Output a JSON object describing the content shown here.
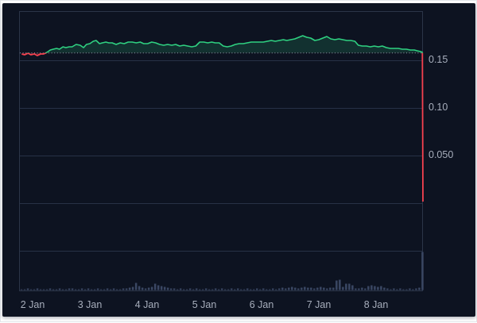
{
  "chart_data": {
    "type": "line",
    "title": "",
    "description": "Dark-themed cryptocurrency price chart: price holds near 0.16 from 2 Jan to 8 Jan, then flash-crashes to near zero; volume bars along bottom with large spike at the crash.",
    "x_axis": {
      "tick_labels": [
        "2 Jan",
        "3 Jan",
        "4 Jan",
        "5 Jan",
        "6 Jan",
        "7 Jan",
        "8 Jan"
      ],
      "unit": "days since 2 Jan 00:00"
    },
    "y_axis": {
      "ticks": [
        {
          "label": "0.15",
          "value": 0.15
        },
        {
          "label": "0.10",
          "value": 0.1
        },
        {
          "label": "0.050",
          "value": 0.05
        }
      ],
      "grid_values": [
        0.15,
        0.1,
        0.05,
        0.0,
        -0.05
      ],
      "ylim": [
        0,
        0.2
      ],
      "grid": "horizontal-only",
      "legend": "none"
    },
    "previous_close": 0.1577,
    "series": [
      {
        "name": "price",
        "points": [
          [
            -0.19,
            0.1567
          ],
          [
            -0.14,
            0.1558
          ],
          [
            -0.08,
            0.1575
          ],
          [
            -0.03,
            0.1558
          ],
          [
            0.03,
            0.1567
          ],
          [
            0.08,
            0.155
          ],
          [
            0.14,
            0.1567
          ],
          [
            0.19,
            0.1567
          ],
          [
            0.25,
            0.1583
          ],
          [
            0.31,
            0.1608
          ],
          [
            0.36,
            0.1617
          ],
          [
            0.42,
            0.1625
          ],
          [
            0.47,
            0.1617
          ],
          [
            0.53,
            0.1642
          ],
          [
            0.58,
            0.1633
          ],
          [
            0.64,
            0.1642
          ],
          [
            0.69,
            0.1642
          ],
          [
            0.76,
            0.1667
          ],
          [
            0.83,
            0.1658
          ],
          [
            0.89,
            0.1633
          ],
          [
            0.94,
            0.1667
          ],
          [
            1.0,
            0.1675
          ],
          [
            1.06,
            0.17
          ],
          [
            1.11,
            0.1708
          ],
          [
            1.17,
            0.1675
          ],
          [
            1.22,
            0.1683
          ],
          [
            1.28,
            0.1692
          ],
          [
            1.33,
            0.1683
          ],
          [
            1.39,
            0.1683
          ],
          [
            1.46,
            0.1667
          ],
          [
            1.53,
            0.1683
          ],
          [
            1.6,
            0.1675
          ],
          [
            1.67,
            0.1692
          ],
          [
            1.74,
            0.1692
          ],
          [
            1.81,
            0.1683
          ],
          [
            1.88,
            0.1692
          ],
          [
            1.94,
            0.1675
          ],
          [
            2.01,
            0.1675
          ],
          [
            2.08,
            0.1692
          ],
          [
            2.15,
            0.1683
          ],
          [
            2.22,
            0.1667
          ],
          [
            2.29,
            0.1658
          ],
          [
            2.36,
            0.1667
          ],
          [
            2.43,
            0.1658
          ],
          [
            2.5,
            0.1667
          ],
          [
            2.57,
            0.165
          ],
          [
            2.64,
            0.1658
          ],
          [
            2.71,
            0.165
          ],
          [
            2.78,
            0.1642
          ],
          [
            2.85,
            0.165
          ],
          [
            2.92,
            0.1692
          ],
          [
            2.99,
            0.1692
          ],
          [
            3.06,
            0.1683
          ],
          [
            3.13,
            0.1692
          ],
          [
            3.19,
            0.1683
          ],
          [
            3.26,
            0.1683
          ],
          [
            3.33,
            0.165
          ],
          [
            3.4,
            0.1642
          ],
          [
            3.47,
            0.165
          ],
          [
            3.54,
            0.1667
          ],
          [
            3.61,
            0.1675
          ],
          [
            3.68,
            0.1675
          ],
          [
            3.75,
            0.1683
          ],
          [
            3.82,
            0.1692
          ],
          [
            3.89,
            0.1692
          ],
          [
            3.96,
            0.1692
          ],
          [
            4.03,
            0.1692
          ],
          [
            4.1,
            0.17
          ],
          [
            4.17,
            0.1708
          ],
          [
            4.24,
            0.17
          ],
          [
            4.31,
            0.1708
          ],
          [
            4.38,
            0.1717
          ],
          [
            4.44,
            0.1708
          ],
          [
            4.51,
            0.1717
          ],
          [
            4.58,
            0.1725
          ],
          [
            4.65,
            0.1742
          ],
          [
            4.72,
            0.1758
          ],
          [
            4.79,
            0.1742
          ],
          [
            4.86,
            0.1733
          ],
          [
            4.93,
            0.1708
          ],
          [
            5.0,
            0.1717
          ],
          [
            5.07,
            0.1733
          ],
          [
            5.14,
            0.175
          ],
          [
            5.21,
            0.1725
          ],
          [
            5.28,
            0.1717
          ],
          [
            5.35,
            0.1725
          ],
          [
            5.42,
            0.1717
          ],
          [
            5.49,
            0.1708
          ],
          [
            5.56,
            0.1708
          ],
          [
            5.63,
            0.17
          ],
          [
            5.69,
            0.1658
          ],
          [
            5.76,
            0.165
          ],
          [
            5.83,
            0.165
          ],
          [
            5.9,
            0.1642
          ],
          [
            5.97,
            0.165
          ],
          [
            6.04,
            0.1642
          ],
          [
            6.11,
            0.165
          ],
          [
            6.18,
            0.1633
          ],
          [
            6.25,
            0.1625
          ],
          [
            6.32,
            0.1625
          ],
          [
            6.39,
            0.1625
          ],
          [
            6.46,
            0.1617
          ],
          [
            6.53,
            0.1617
          ],
          [
            6.6,
            0.1608
          ],
          [
            6.67,
            0.1608
          ],
          [
            6.72,
            0.16
          ],
          [
            6.78,
            0.1592
          ],
          [
            6.81,
            0.1583
          ],
          [
            6.82,
            0.0017
          ]
        ]
      }
    ],
    "volume": {
      "unit": "relative-pixel-height",
      "t_start": -0.194,
      "pitch_days": 0.0556,
      "heights": [
        1,
        1,
        2,
        1,
        1,
        2,
        1,
        1,
        1,
        2,
        1,
        1,
        2,
        1,
        1,
        2,
        2,
        1,
        1,
        2,
        1,
        2,
        1,
        1,
        2,
        1,
        1,
        2,
        1,
        2,
        1,
        1,
        2,
        2,
        3,
        4,
        9,
        5,
        3,
        2,
        3,
        4,
        8,
        6,
        5,
        4,
        3,
        2,
        2,
        1,
        2,
        1,
        1,
        2,
        1,
        2,
        1,
        1,
        2,
        1,
        1,
        2,
        1,
        2,
        1,
        1,
        2,
        1,
        2,
        1,
        1,
        2,
        1,
        1,
        2,
        1,
        2,
        1,
        1,
        2,
        1,
        2,
        3,
        2,
        3,
        4,
        3,
        2,
        3,
        4,
        3,
        3,
        2,
        3,
        4,
        3,
        2,
        3,
        3,
        12,
        13,
        4,
        8,
        8,
        6,
        2,
        2,
        3,
        2,
        5,
        6,
        5,
        4,
        5,
        3,
        2,
        1,
        2,
        1,
        2,
        1,
        1,
        2,
        1,
        2,
        3,
        48
      ]
    }
  },
  "colors": {
    "background": "#ffffff",
    "panel_background": "#0d1321",
    "grid": "#273146",
    "plot_border": "#2b3548",
    "baseline_dotted": "#959eb0",
    "price_up": "#2fd181",
    "price_down": "#f5414f",
    "volume_bar": "#3a4763",
    "tick_label": "#a7aebc"
  }
}
